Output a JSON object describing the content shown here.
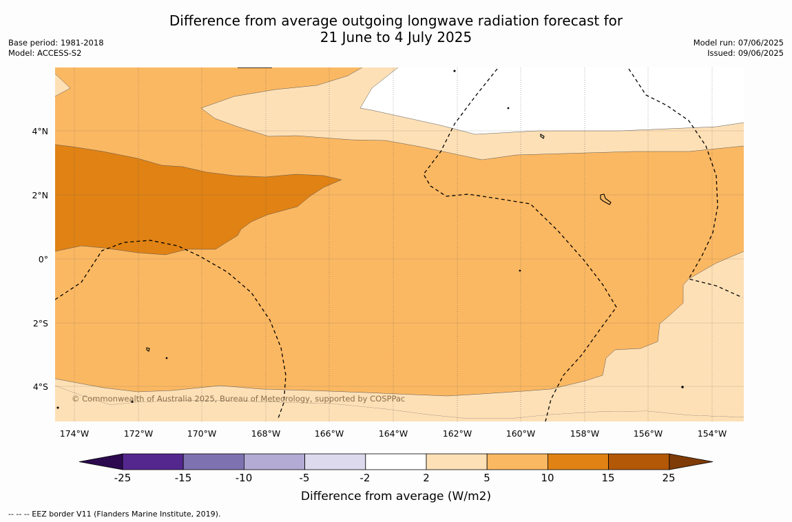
{
  "title": {
    "line1": "Difference from average outgoing longwave radiation forecast for",
    "line2": "21 June to 4 July 2025"
  },
  "meta_left": {
    "base_period": "Base period: 1981-2018",
    "model": "Model: ACCESS-S2"
  },
  "meta_right": {
    "model_run": "Model run: 07/06/2025",
    "issued": "Issued: 09/06/2025"
  },
  "map": {
    "lat_ticks": [
      "4°N",
      "2°N",
      "0°",
      "2°S",
      "4°S"
    ],
    "lon_ticks": [
      "174°W",
      "172°W",
      "170°W",
      "168°W",
      "166°W",
      "164°W",
      "162°W",
      "160°W",
      "158°W",
      "156°W",
      "154°W"
    ],
    "copyright": "© Commonwealth of Australia 2025, Bureau of Meteorology, supported by COSPPac"
  },
  "colorbar": {
    "label": "Difference from average (W/m2)",
    "ticks": [
      "-25",
      "-15",
      "-10",
      "-5",
      "-2",
      "2",
      "5",
      "10",
      "15",
      "25"
    ],
    "colors": [
      "#2d0a50",
      "#54278f",
      "#7f72b1",
      "#b3abd4",
      "#dcdaec",
      "#ffffff",
      "#fee0b6",
      "#fbb862",
      "#e08214",
      "#b35807",
      "#7f3b08"
    ]
  },
  "footer": "--  --  -- EEZ border V11 (Flanders Marine Institute, 2019)."
}
